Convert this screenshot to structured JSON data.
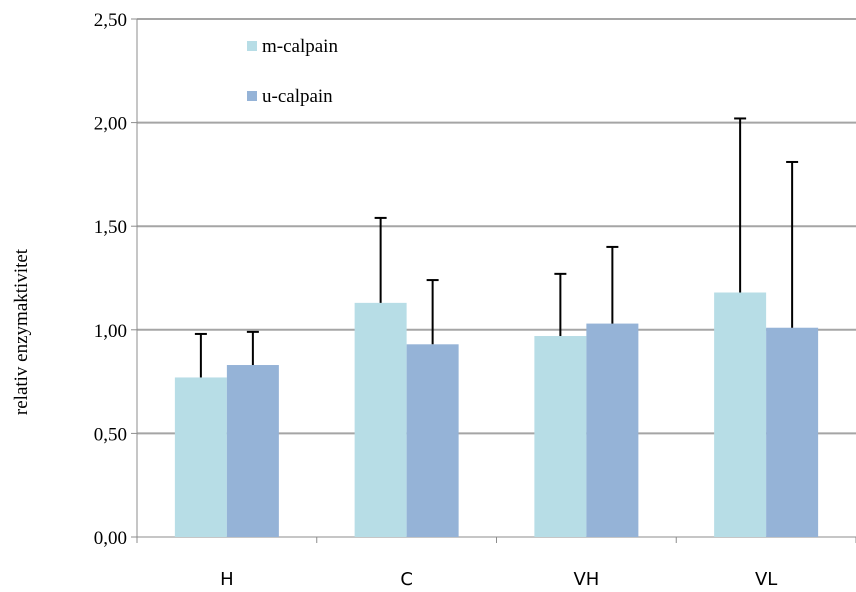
{
  "chart_data": {
    "type": "bar",
    "ylabel": "relativ enzymaktivitet",
    "ylim": [
      0,
      2.5
    ],
    "yticks": [
      "0,00",
      "0,50",
      "1,00",
      "1,50",
      "2,00",
      "2,50"
    ],
    "ytick_values": [
      0,
      0.5,
      1.0,
      1.5,
      2.0,
      2.5
    ],
    "categories": [
      "H",
      "C",
      "VH",
      "VL"
    ],
    "series": [
      {
        "name": "m-calpain",
        "color": "#b7dde6",
        "values": [
          0.77,
          1.13,
          0.97,
          1.18
        ],
        "error": [
          0.21,
          0.41,
          0.3,
          0.84
        ]
      },
      {
        "name": "u-calpain",
        "color": "#95b3d7",
        "values": [
          0.83,
          0.93,
          1.03,
          1.01
        ],
        "error": [
          0.16,
          0.31,
          0.37,
          0.8
        ]
      }
    ],
    "grid": true,
    "gridline_color": "#a5a5a5",
    "legend_position": "top-left"
  }
}
